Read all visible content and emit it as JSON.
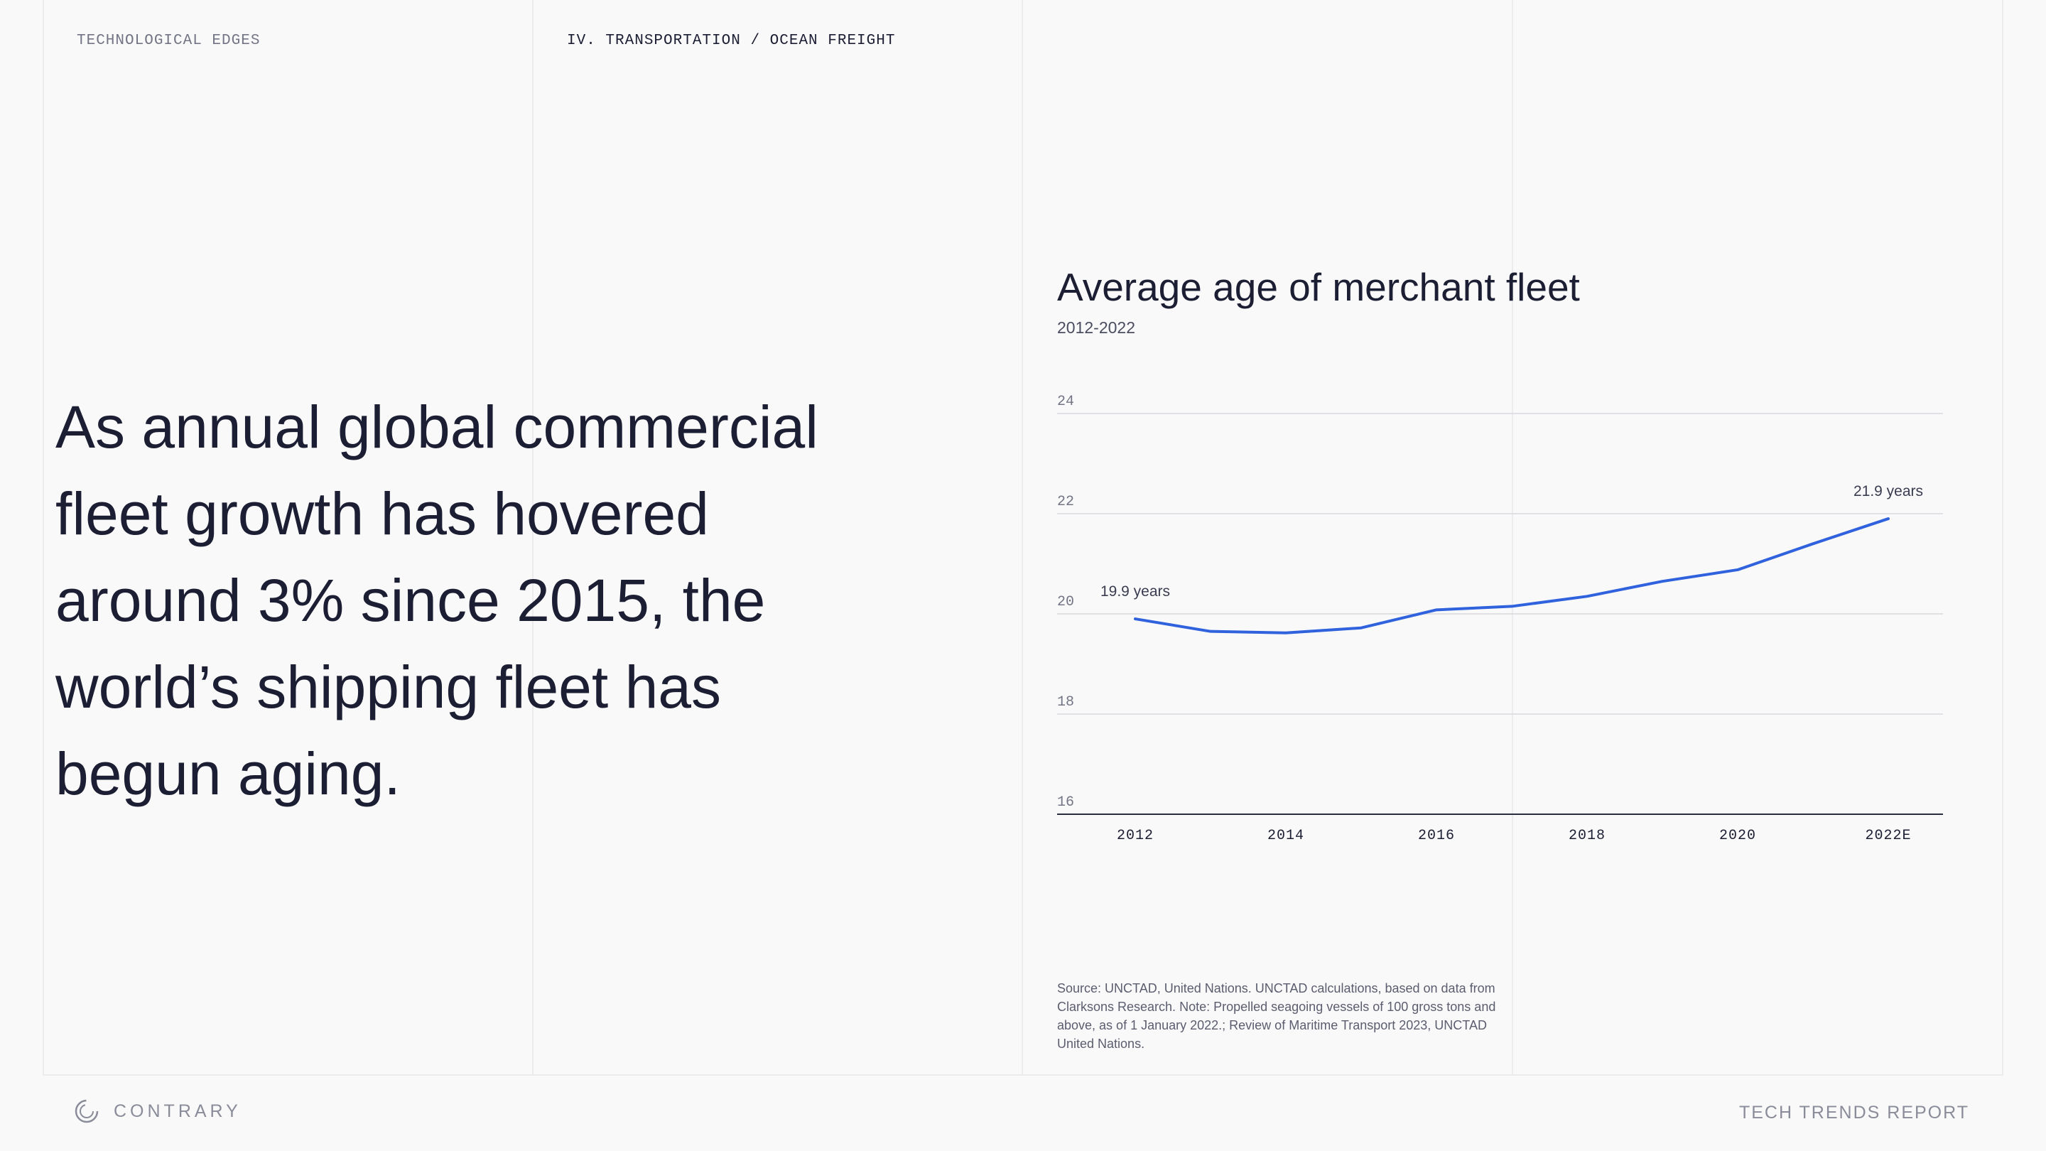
{
  "header": {
    "left_label": "TECHNOLOGICAL EDGES",
    "section_label": "IV. TRANSPORTATION / OCEAN FREIGHT"
  },
  "headline": "As annual global commercial fleet growth has hovered around 3% since 2015, the world’s shipping fleet has begun aging.",
  "chart_data": {
    "type": "line",
    "title": "Average age of merchant fleet",
    "subtitle": "2012-2022",
    "xlabel": "",
    "ylabel": "",
    "x": [
      2012,
      2013,
      2014,
      2015,
      2016,
      2017,
      2018,
      2019,
      2020,
      2021,
      2022
    ],
    "x_tick_labels": [
      "2012",
      "2014",
      "2016",
      "2018",
      "2020",
      "2022E"
    ],
    "x_tick_values": [
      2012,
      2014,
      2016,
      2018,
      2020,
      2022
    ],
    "series": [
      {
        "values": [
          19.9,
          19.65,
          19.62,
          19.72,
          20.08,
          20.15,
          20.35,
          20.65,
          20.88,
          21.4,
          21.9
        ],
        "color": "#2f62dc"
      }
    ],
    "annotations": [
      {
        "x": 2012,
        "y": 19.9,
        "text": "19.9 years"
      },
      {
        "x": 2022,
        "y": 21.9,
        "text": "21.9 years"
      }
    ],
    "ylim": [
      16,
      24
    ],
    "y_ticks": [
      "24",
      "22",
      "20",
      "18",
      "16"
    ],
    "grid": true,
    "legend": "none"
  },
  "source_note": "Source: UNCTAD, United Nations. UNCTAD calculations, based on data from Clarksons Research. Note: Propelled seagoing vessels of 100 gross tons and above, as of 1 January 2022.; Review of Maritime Transport 2023, UNCTAD United Nations.",
  "footer": {
    "brand": "CONTRARY",
    "report": "TECH TRENDS REPORT"
  },
  "colors": {
    "background": "#f9f9fa",
    "text": "#1c1e33",
    "series": "#2f62dc",
    "muted": "#8a8c99"
  }
}
